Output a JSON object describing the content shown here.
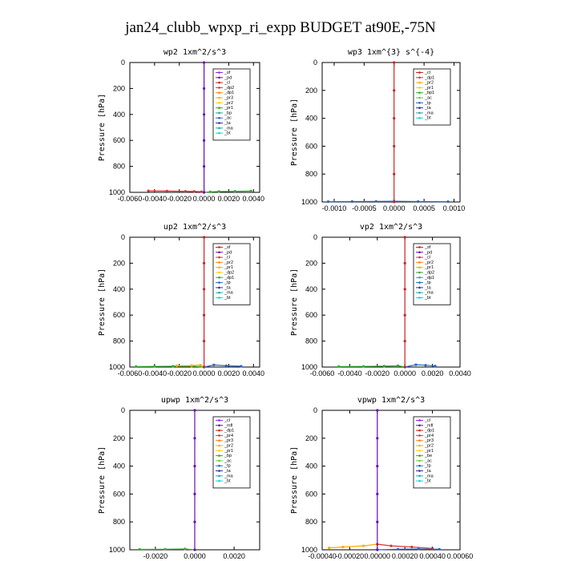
{
  "figure_title": "jan24_clubb_wpxp_ri_expp  BUDGET at90E,-75N",
  "chart_data": [
    {
      "type": "line",
      "title": "wp2   1xm^2/s^3",
      "ylabel": "Pressure [hPa]",
      "ylim": [
        1000,
        0
      ],
      "yticks": [
        "0",
        "200",
        "400",
        "600",
        "800",
        "1000"
      ],
      "xlim": [
        -0.006,
        0.0045
      ],
      "xticks": [
        -0.006,
        -0.004,
        -0.002,
        0.0,
        0.002,
        0.004
      ],
      "xtick_labels": [
        "-0.0060",
        "-0.0040",
        "-0.0020",
        "0.0000",
        "0.0020",
        "0.0040"
      ],
      "legend": {
        "position": "top-right",
        "colors": [
          "#8a2be2",
          "#6a0dad",
          "#cc2222",
          "#dd3333",
          "#ff8800",
          "#ffaa00",
          "#ffcc00",
          "#33aa33",
          "#22aa88",
          "#2266cc",
          "#333399",
          "#22aaaa",
          "#00dddd"
        ],
        "entries": [
          "_sf",
          "_pd",
          "_cl",
          "_dp2",
          "_dp1",
          "_pr3",
          "_pr2",
          "_pr1",
          "_bp",
          "_ac",
          "_ta",
          "_ma",
          "_bt"
        ]
      },
      "series": [
        {
          "color": "#dd3333",
          "x": [
            -0.0045,
            -0.003,
            -0.0015,
            -0.0008,
            -0.0002,
            0.0
          ],
          "y": [
            988,
            990,
            992,
            993,
            995,
            1000
          ]
        },
        {
          "color": "#33aa33",
          "x": [
            0.0,
            0.0005,
            0.0012,
            0.0025,
            0.0038
          ],
          "y": [
            1000,
            996,
            994,
            992,
            990
          ]
        },
        {
          "color": "#6a0dad",
          "x": [
            0.0,
            0.0,
            0.0,
            0.0,
            0.0,
            0.0
          ],
          "y": [
            0,
            200,
            400,
            600,
            800,
            1000
          ]
        }
      ]
    },
    {
      "type": "line",
      "title": "wp3   1xm^{3} s^{-4}",
      "ylabel": "Pressure [hPa]",
      "ylim": [
        1000,
        0
      ],
      "yticks": [
        "0",
        "200",
        "400",
        "600",
        "800",
        "1000"
      ],
      "xlim": [
        -0.0012,
        0.0011
      ],
      "xticks": [
        -0.001,
        -0.0005,
        0.0,
        0.0005,
        0.001
      ],
      "xtick_labels": [
        "-0.0010",
        "-0.0005",
        "0.0000",
        "0.0005",
        "0.0010"
      ],
      "legend": {
        "position": "top-right",
        "colors": [
          "#cc2222",
          "#dd3333",
          "#ffaa00",
          "#ffcc00",
          "#33aa33",
          "#66cc33",
          "#2266cc",
          "#333399",
          "#22aaaa",
          "#00dddd"
        ],
        "entries": [
          "_cl",
          "_dp1",
          "_pr2",
          "_pr1",
          "_bp1",
          "_ac",
          "_tp",
          "_ta",
          "_ma",
          "_bt"
        ]
      },
      "series": [
        {
          "color": "#2266cc",
          "x": [
            -0.0011,
            -0.0007,
            -0.0003,
            0.0,
            0.0004,
            0.0009
          ],
          "y": [
            998,
            997,
            996,
            995,
            997,
            998
          ]
        },
        {
          "color": "#cc2222",
          "x": [
            0.0,
            0.0,
            0.0,
            0.0,
            0.0,
            0.0
          ],
          "y": [
            0,
            200,
            400,
            600,
            800,
            1000
          ]
        }
      ]
    },
    {
      "type": "line",
      "title": "up2   1xm^2/s^3",
      "ylabel": "Pressure [hPa]",
      "ylim": [
        1000,
        0
      ],
      "yticks": [
        "0",
        "200",
        "400",
        "600",
        "800",
        "1000"
      ],
      "xlim": [
        -0.006,
        0.0045
      ],
      "xticks": [
        -0.006,
        -0.004,
        -0.002,
        0.0,
        0.002,
        0.004
      ],
      "xtick_labels": [
        "-0.0060",
        "-0.0040",
        "-0.0020",
        "0.0000",
        "0.0020",
        "0.0040"
      ],
      "legend": {
        "position": "top-right",
        "colors": [
          "#cc2222",
          "#6a0dad",
          "#dd3333",
          "#ff8800",
          "#ffaa00",
          "#ffcc00",
          "#33aa33",
          "#2266cc",
          "#333399",
          "#22aaaa",
          "#00dddd"
        ],
        "entries": [
          "_sf",
          "_pd",
          "_cl",
          "_pr2",
          "_pr1",
          "_dp2",
          "_dp1",
          "_tp",
          "_ta",
          "_ma",
          "_bt"
        ]
      },
      "series": [
        {
          "color": "#33aa33",
          "x": [
            -0.0055,
            -0.004,
            -0.0025,
            -0.001,
            0.0
          ],
          "y": [
            996,
            995,
            994,
            993,
            1000
          ]
        },
        {
          "color": "#ffaa00",
          "x": [
            -0.0022,
            -0.001,
            -0.0003,
            0.0
          ],
          "y": [
            990,
            988,
            985,
            1000
          ]
        },
        {
          "color": "#2266cc",
          "x": [
            0.0,
            0.0008,
            0.0018,
            0.003
          ],
          "y": [
            1000,
            984,
            990,
            994
          ]
        },
        {
          "color": "#cc2222",
          "x": [
            0.0,
            0.0,
            0.0,
            0.0,
            0.0,
            0.0
          ],
          "y": [
            0,
            200,
            400,
            600,
            800,
            1000
          ]
        }
      ]
    },
    {
      "type": "line",
      "title": "vp2   1xm^2/s^3",
      "ylabel": "Pressure [hPa]",
      "ylim": [
        1000,
        0
      ],
      "yticks": [
        "0",
        "200",
        "400",
        "600",
        "800",
        "1000"
      ],
      "xlim": [
        -0.006,
        0.004
      ],
      "xticks": [
        -0.006,
        -0.004,
        -0.002,
        0.0,
        0.002,
        0.004
      ],
      "xtick_labels": [
        "-0.0060",
        "-0.0040",
        "-0.0020",
        "0.0000",
        "0.0020",
        "0.0040"
      ],
      "legend": {
        "position": "top-right",
        "colors": [
          "#cc2222",
          "#6a0dad",
          "#dd3333",
          "#ff8800",
          "#ffaa00",
          "#33aa33",
          "#22aa88",
          "#2266cc",
          "#333399",
          "#22aaaa",
          "#00dddd"
        ],
        "entries": [
          "_sf",
          "_pd",
          "_cl",
          "_pr2",
          "_pr1",
          "_dp2",
          "_dp1",
          "_tp",
          "_ta",
          "_ma",
          "_bt"
        ]
      },
      "series": [
        {
          "color": "#33aa33",
          "x": [
            -0.0048,
            -0.003,
            -0.0015,
            -0.0005,
            0.0
          ],
          "y": [
            996,
            995,
            993,
            990,
            1000
          ]
        },
        {
          "color": "#2266cc",
          "x": [
            0.0,
            0.0008,
            0.0015,
            0.0022
          ],
          "y": [
            1000,
            982,
            986,
            992
          ]
        },
        {
          "color": "#cc2222",
          "x": [
            0.0,
            0.0,
            0.0,
            0.0,
            0.0,
            0.0
          ],
          "y": [
            0,
            200,
            400,
            600,
            800,
            1000
          ]
        }
      ]
    },
    {
      "type": "line",
      "title": "upwp   1xm^2/s^3",
      "ylabel": "Pressure [hPa]",
      "ylim": [
        1000,
        0
      ],
      "yticks": [
        "0",
        "200",
        "400",
        "600",
        "800",
        "1000"
      ],
      "xlim": [
        -0.0033,
        0.0033
      ],
      "xticks": [
        -0.002,
        0.0,
        0.002
      ],
      "xtick_labels": [
        "-0.0020",
        "0.0000",
        "0.0020"
      ],
      "legend": {
        "position": "top-right",
        "colors": [
          "#8a2be2",
          "#6a0dad",
          "#cc2222",
          "#dd3333",
          "#ff8800",
          "#ffaa00",
          "#ffcc00",
          "#33aa33",
          "#66cc33",
          "#2266cc",
          "#333399",
          "#22aaaa",
          "#00dddd"
        ],
        "entries": [
          "_cl",
          "_mfl",
          "_dp1",
          "_pr4",
          "_pr3",
          "_pr2",
          "_pr1",
          "_bp",
          "_ac",
          "_tp",
          "_ta",
          "_ma",
          "_bt"
        ]
      },
      "series": [
        {
          "color": "#33aa33",
          "x": [
            -0.0028,
            -0.0015,
            -0.0005,
            0.0
          ],
          "y": [
            997,
            996,
            994,
            1000
          ]
        },
        {
          "color": "#6a0dad",
          "x": [
            0.0,
            0.0,
            0.0,
            0.0,
            0.0,
            0.0
          ],
          "y": [
            0,
            200,
            400,
            600,
            800,
            1000
          ]
        }
      ]
    },
    {
      "type": "line",
      "title": "vpwp   1xm^2/s^3",
      "ylabel": "Pressure [hPa]",
      "ylim": [
        1000,
        0
      ],
      "yticks": [
        "0",
        "200",
        "400",
        "600",
        "800",
        "1000"
      ],
      "xlim": [
        -0.0004,
        0.0006
      ],
      "xticks": [
        -0.0004,
        -0.0002,
        0.0,
        0.0002,
        0.0004,
        0.0006
      ],
      "xtick_labels": [
        "-0.00040",
        "-0.00020",
        "0.00000",
        "0.00020",
        "0.00040",
        "0.00060"
      ],
      "legend": {
        "position": "top-right",
        "colors": [
          "#8a2be2",
          "#6a0dad",
          "#cc2222",
          "#dd3333",
          "#ff8800",
          "#ffaa00",
          "#ffcc00",
          "#33aa33",
          "#66cc33",
          "#2266cc",
          "#333399",
          "#22aaaa",
          "#00dddd"
        ],
        "entries": [
          "_cl",
          "_mfl",
          "_dp1",
          "_pr4",
          "_pr3",
          "_pr2",
          "_pr1",
          "_be",
          "_ac",
          "_tp",
          "_ta",
          "_ma",
          "_bt"
        ]
      },
      "series": [
        {
          "color": "#ffaa00",
          "x": [
            -0.00035,
            -0.00025,
            -0.0001,
            0.0
          ],
          "y": [
            986,
            980,
            972,
            960
          ]
        },
        {
          "color": "#dd3333",
          "x": [
            0.0,
            0.0001,
            0.00025,
            0.0004
          ],
          "y": [
            960,
            972,
            980,
            990
          ]
        },
        {
          "color": "#2266cc",
          "x": [
            0.0,
            0.00015,
            0.0003,
            0.00045
          ],
          "y": [
            1000,
            996,
            994,
            996
          ]
        },
        {
          "color": "#6a0dad",
          "x": [
            0.0,
            0.0,
            0.0,
            0.0,
            0.0,
            0.0
          ],
          "y": [
            0,
            200,
            400,
            600,
            800,
            1000
          ]
        }
      ]
    }
  ]
}
